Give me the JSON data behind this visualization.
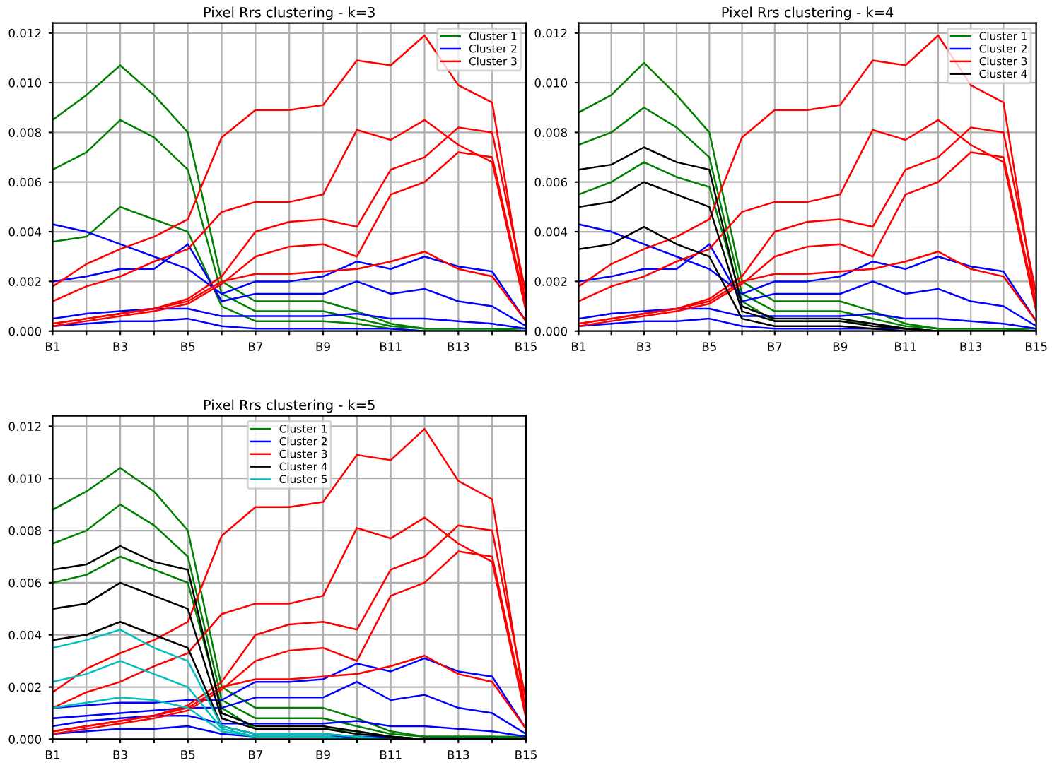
{
  "chart_data": [
    {
      "type": "line",
      "title": "Pixel Rrs clustering - k=3",
      "categories": [
        "B1",
        null,
        "B3",
        null,
        "B5",
        null,
        "B7",
        null,
        "B9",
        null,
        "B11",
        null,
        "B13",
        null,
        "B15"
      ],
      "ylim": [
        0,
        0.0124
      ],
      "yticks": [
        {
          "value": 0,
          "label": "0.000"
        },
        {
          "value": 0.002,
          "label": "0.002"
        },
        {
          "value": 0.004,
          "label": "0.004"
        },
        {
          "value": 0.006,
          "label": "0.006"
        },
        {
          "value": 0.008,
          "label": "0.008"
        },
        {
          "value": 0.01,
          "label": "0.010"
        },
        {
          "value": 0.012,
          "label": "0.012"
        }
      ],
      "grid": true,
      "legend": "top right",
      "series": [
        {
          "name": "Cluster 1",
          "color": "#008000",
          "values": [
            0.0085,
            0.0095,
            0.0107,
            0.0095,
            0.008,
            0.002,
            0.0012,
            0.0012,
            0.0012,
            0.0008,
            0.0003,
            0.0001,
            0.0001,
            0.0001,
            0.0001
          ]
        },
        {
          "color": "#008000",
          "values": [
            0.0065,
            0.0072,
            0.0085,
            0.0078,
            0.0065,
            0.0015,
            0.0008,
            0.0008,
            0.0008,
            0.0005,
            0.0002,
            0.0001,
            0.0001,
            0.0001,
            0
          ]
        },
        {
          "color": "#008000",
          "values": [
            0.0036,
            0.0038,
            0.005,
            0.0045,
            0.004,
            0.001,
            0.0004,
            0.0004,
            0.0004,
            0.0003,
            0.0001,
            0,
            0,
            0,
            0
          ]
        },
        {
          "name": "Cluster 2",
          "color": "#0000ff",
          "values": [
            0.0043,
            0.004,
            0.0035,
            0.003,
            0.0025,
            0.0015,
            0.002,
            0.002,
            0.0022,
            0.0028,
            0.0025,
            0.003,
            0.0026,
            0.0024,
            0.0004
          ]
        },
        {
          "color": "#0000ff",
          "values": [
            0.002,
            0.0022,
            0.0025,
            0.0025,
            0.0035,
            0.0012,
            0.0015,
            0.0015,
            0.0015,
            0.002,
            0.0015,
            0.0017,
            0.0012,
            0.001,
            0.0002
          ]
        },
        {
          "color": "#0000ff",
          "values": [
            0.0005,
            0.0007,
            0.0008,
            0.0009,
            0.0009,
            0.0006,
            0.0006,
            0.0006,
            0.0006,
            0.0007,
            0.0005,
            0.0005,
            0.0004,
            0.0003,
            0.0001
          ]
        },
        {
          "color": "#0000ff",
          "values": [
            0.0002,
            0.0003,
            0.0004,
            0.0004,
            0.0005,
            0.0002,
            0.0001,
            0.0001,
            0.0001,
            0.0001,
            0.0001,
            0,
            0,
            0,
            0
          ]
        },
        {
          "name": "Cluster 3",
          "color": "#ff0000",
          "values": [
            0.0018,
            0.0027,
            0.0033,
            0.0038,
            0.0045,
            0.0078,
            0.0089,
            0.0089,
            0.0091,
            0.0109,
            0.0107,
            0.0119,
            0.0099,
            0.0092,
            0.001
          ]
        },
        {
          "color": "#ff0000",
          "values": [
            0.0012,
            0.0018,
            0.0022,
            0.0028,
            0.0033,
            0.0048,
            0.0052,
            0.0052,
            0.0055,
            0.0081,
            0.0077,
            0.0085,
            0.0075,
            0.0068,
            0.0008
          ]
        },
        {
          "color": "#ff0000",
          "values": [
            0.0003,
            0.0005,
            0.0007,
            0.0009,
            0.0013,
            0.0022,
            0.004,
            0.0044,
            0.0045,
            0.0042,
            0.0065,
            0.007,
            0.0082,
            0.008,
            0.0015
          ]
        },
        {
          "color": "#ff0000",
          "values": [
            0.0002,
            0.0004,
            0.0006,
            0.0008,
            0.0011,
            0.0019,
            0.003,
            0.0034,
            0.0035,
            0.003,
            0.0055,
            0.006,
            0.0072,
            0.007,
            0.001
          ]
        },
        {
          "color": "#ff0000",
          "values": [
            0.0003,
            0.0005,
            0.0007,
            0.0009,
            0.0012,
            0.002,
            0.0023,
            0.0023,
            0.0024,
            0.0025,
            0.0028,
            0.0032,
            0.0025,
            0.0022,
            0.0004
          ]
        }
      ]
    },
    {
      "type": "line",
      "title": "Pixel Rrs clustering - k=4",
      "categories": [
        "B1",
        null,
        "B3",
        null,
        "B5",
        null,
        "B7",
        null,
        "B9",
        null,
        "B11",
        null,
        "B13",
        null,
        "B15"
      ],
      "ylim": [
        0,
        0.0124
      ],
      "yticks": [
        {
          "value": 0,
          "label": "0.000"
        },
        {
          "value": 0.002,
          "label": "0.002"
        },
        {
          "value": 0.004,
          "label": "0.004"
        },
        {
          "value": 0.006,
          "label": "0.006"
        },
        {
          "value": 0.008,
          "label": "0.008"
        },
        {
          "value": 0.01,
          "label": "0.010"
        },
        {
          "value": 0.012,
          "label": "0.012"
        }
      ],
      "grid": true,
      "legend": "top right",
      "series": [
        {
          "name": "Cluster 1",
          "color": "#008000",
          "values": [
            0.0088,
            0.0095,
            0.0108,
            0.0095,
            0.008,
            0.002,
            0.0012,
            0.0012,
            0.0012,
            0.0008,
            0.0003,
            0.0001,
            0.0001,
            0.0001,
            0.0001
          ]
        },
        {
          "color": "#008000",
          "values": [
            0.0075,
            0.008,
            0.009,
            0.0082,
            0.007,
            0.0015,
            0.0008,
            0.0008,
            0.0008,
            0.0005,
            0.0002,
            0.0001,
            0.0001,
            0.0001,
            0
          ]
        },
        {
          "color": "#008000",
          "values": [
            0.0055,
            0.006,
            0.0068,
            0.0062,
            0.0058,
            0.0012,
            0.0004,
            0.0004,
            0.0004,
            0.0003,
            0.0001,
            0,
            0,
            0,
            0
          ]
        },
        {
          "name": "Cluster 2",
          "color": "#0000ff",
          "values": [
            0.0043,
            0.004,
            0.0035,
            0.003,
            0.0025,
            0.0015,
            0.002,
            0.002,
            0.0022,
            0.0028,
            0.0025,
            0.003,
            0.0026,
            0.0024,
            0.0004
          ]
        },
        {
          "color": "#0000ff",
          "values": [
            0.002,
            0.0022,
            0.0025,
            0.0025,
            0.0035,
            0.0012,
            0.0015,
            0.0015,
            0.0015,
            0.002,
            0.0015,
            0.0017,
            0.0012,
            0.001,
            0.0002
          ]
        },
        {
          "color": "#0000ff",
          "values": [
            0.0005,
            0.0007,
            0.0008,
            0.0009,
            0.0009,
            0.0006,
            0.0006,
            0.0006,
            0.0006,
            0.0007,
            0.0005,
            0.0005,
            0.0004,
            0.0003,
            0.0001
          ]
        },
        {
          "color": "#0000ff",
          "values": [
            0.0002,
            0.0003,
            0.0004,
            0.0004,
            0.0005,
            0.0002,
            0.0001,
            0.0001,
            0.0001,
            0.0001,
            0.0001,
            0,
            0,
            0,
            0
          ]
        },
        {
          "name": "Cluster 3",
          "color": "#ff0000",
          "values": [
            0.0018,
            0.0027,
            0.0033,
            0.0038,
            0.0045,
            0.0078,
            0.0089,
            0.0089,
            0.0091,
            0.0109,
            0.0107,
            0.0119,
            0.0099,
            0.0092,
            0.001
          ]
        },
        {
          "color": "#ff0000",
          "values": [
            0.0012,
            0.0018,
            0.0022,
            0.0028,
            0.0033,
            0.0048,
            0.0052,
            0.0052,
            0.0055,
            0.0081,
            0.0077,
            0.0085,
            0.0075,
            0.0068,
            0.0008
          ]
        },
        {
          "color": "#ff0000",
          "values": [
            0.0003,
            0.0005,
            0.0007,
            0.0009,
            0.0013,
            0.0022,
            0.004,
            0.0044,
            0.0045,
            0.0042,
            0.0065,
            0.007,
            0.0082,
            0.008,
            0.0015
          ]
        },
        {
          "color": "#ff0000",
          "values": [
            0.0002,
            0.0004,
            0.0006,
            0.0008,
            0.0011,
            0.0019,
            0.003,
            0.0034,
            0.0035,
            0.003,
            0.0055,
            0.006,
            0.0072,
            0.007,
            0.001
          ]
        },
        {
          "color": "#ff0000",
          "values": [
            0.0003,
            0.0005,
            0.0007,
            0.0009,
            0.0012,
            0.002,
            0.0023,
            0.0023,
            0.0024,
            0.0025,
            0.0028,
            0.0032,
            0.0025,
            0.0022,
            0.0004
          ]
        },
        {
          "name": "Cluster 4",
          "color": "#000000",
          "values": [
            0.0065,
            0.0067,
            0.0074,
            0.0068,
            0.0065,
            0.001,
            0.0005,
            0.0005,
            0.0005,
            0.0003,
            0.0001,
            0,
            0,
            0,
            0
          ]
        },
        {
          "color": "#000000",
          "values": [
            0.005,
            0.0052,
            0.006,
            0.0055,
            0.005,
            0.0008,
            0.0004,
            0.0004,
            0.0004,
            0.0002,
            0.0001,
            0,
            0,
            0,
            0
          ]
        },
        {
          "color": "#000000",
          "values": [
            0.0033,
            0.0035,
            0.0042,
            0.0035,
            0.003,
            0.0005,
            0.0002,
            0.0002,
            0.0002,
            0.0001,
            0,
            0,
            0,
            0,
            0
          ]
        }
      ]
    },
    {
      "type": "line",
      "title": "Pixel Rrs clustering - k=5",
      "categories": [
        "B1",
        null,
        "B3",
        null,
        "B5",
        null,
        "B7",
        null,
        "B9",
        null,
        "B11",
        null,
        "B13",
        null,
        "B15"
      ],
      "ylim": [
        0,
        0.0124
      ],
      "yticks": [
        {
          "value": 0,
          "label": "0.000"
        },
        {
          "value": 0.002,
          "label": "0.002"
        },
        {
          "value": 0.004,
          "label": "0.004"
        },
        {
          "value": 0.006,
          "label": "0.006"
        },
        {
          "value": 0.008,
          "label": "0.008"
        },
        {
          "value": 0.01,
          "label": "0.010"
        },
        {
          "value": 0.012,
          "label": "0.012"
        }
      ],
      "grid": true,
      "legend": "top",
      "series": [
        {
          "name": "Cluster 1",
          "color": "#008000",
          "values": [
            0.0088,
            0.0095,
            0.0104,
            0.0095,
            0.008,
            0.002,
            0.0012,
            0.0012,
            0.0012,
            0.0008,
            0.0003,
            0.0001,
            0.0001,
            0.0001,
            0.0001
          ]
        },
        {
          "color": "#008000",
          "values": [
            0.0075,
            0.008,
            0.009,
            0.0082,
            0.007,
            0.0015,
            0.0008,
            0.0008,
            0.0008,
            0.0005,
            0.0002,
            0.0001,
            0.0001,
            0.0001,
            0
          ]
        },
        {
          "color": "#008000",
          "values": [
            0.006,
            0.0063,
            0.007,
            0.0065,
            0.006,
            0.0012,
            0.0004,
            0.0004,
            0.0004,
            0.0003,
            0.0001,
            0,
            0,
            0,
            0
          ]
        },
        {
          "name": "Cluster 2",
          "color": "#0000ff",
          "values": [
            0.0012,
            0.0013,
            0.0014,
            0.0014,
            0.0015,
            0.0015,
            0.0022,
            0.0022,
            0.0023,
            0.0029,
            0.0026,
            0.0031,
            0.0026,
            0.0024,
            0.0004
          ]
        },
        {
          "color": "#0000ff",
          "values": [
            0.0008,
            0.0009,
            0.001,
            0.0011,
            0.0012,
            0.0012,
            0.0016,
            0.0016,
            0.0016,
            0.0022,
            0.0015,
            0.0017,
            0.0012,
            0.001,
            0.0002
          ]
        },
        {
          "color": "#0000ff",
          "values": [
            0.0005,
            0.0007,
            0.0008,
            0.0009,
            0.0009,
            0.0006,
            0.0006,
            0.0006,
            0.0006,
            0.0007,
            0.0005,
            0.0005,
            0.0004,
            0.0003,
            0.0001
          ]
        },
        {
          "color": "#0000ff",
          "values": [
            0.0002,
            0.0003,
            0.0004,
            0.0004,
            0.0005,
            0.0002,
            0.0001,
            0.0001,
            0.0001,
            0.0001,
            0.0001,
            0,
            0,
            0,
            0
          ]
        },
        {
          "name": "Cluster 3",
          "color": "#ff0000",
          "values": [
            0.0018,
            0.0027,
            0.0033,
            0.0038,
            0.0045,
            0.0078,
            0.0089,
            0.0089,
            0.0091,
            0.0109,
            0.0107,
            0.0119,
            0.0099,
            0.0092,
            0.001
          ]
        },
        {
          "color": "#ff0000",
          "values": [
            0.0012,
            0.0018,
            0.0022,
            0.0028,
            0.0033,
            0.0048,
            0.0052,
            0.0052,
            0.0055,
            0.0081,
            0.0077,
            0.0085,
            0.0075,
            0.0068,
            0.0008
          ]
        },
        {
          "color": "#ff0000",
          "values": [
            0.0003,
            0.0005,
            0.0007,
            0.0009,
            0.0013,
            0.0022,
            0.004,
            0.0044,
            0.0045,
            0.0042,
            0.0065,
            0.007,
            0.0082,
            0.008,
            0.0015
          ]
        },
        {
          "color": "#ff0000",
          "values": [
            0.0002,
            0.0004,
            0.0006,
            0.0008,
            0.0011,
            0.0019,
            0.003,
            0.0034,
            0.0035,
            0.003,
            0.0055,
            0.006,
            0.0072,
            0.007,
            0.001
          ]
        },
        {
          "color": "#ff0000",
          "values": [
            0.0003,
            0.0005,
            0.0007,
            0.0009,
            0.0012,
            0.002,
            0.0023,
            0.0023,
            0.0024,
            0.0025,
            0.0028,
            0.0032,
            0.0025,
            0.0022,
            0.0004
          ]
        },
        {
          "name": "Cluster 4",
          "color": "#000000",
          "values": [
            0.0065,
            0.0067,
            0.0074,
            0.0068,
            0.0065,
            0.001,
            0.0005,
            0.0005,
            0.0005,
            0.0003,
            0.0001,
            0,
            0,
            0,
            0
          ]
        },
        {
          "color": "#000000",
          "values": [
            0.005,
            0.0052,
            0.006,
            0.0055,
            0.005,
            0.0008,
            0.0004,
            0.0004,
            0.0004,
            0.0002,
            0.0001,
            0,
            0,
            0,
            0
          ]
        },
        {
          "color": "#000000",
          "values": [
            0.0038,
            0.004,
            0.0045,
            0.004,
            0.0035,
            0.0005,
            0.0002,
            0.0002,
            0.0002,
            0.0001,
            0,
            0,
            0,
            0,
            0
          ]
        },
        {
          "name": "Cluster 5",
          "color": "#00bfbf",
          "values": [
            0.0035,
            0.0038,
            0.0042,
            0.0035,
            0.003,
            0.0005,
            0.0002,
            0.0002,
            0.0002,
            0.0001,
            0,
            null,
            null,
            null,
            null
          ]
        },
        {
          "color": "#00bfbf",
          "values": [
            0.0022,
            0.0025,
            0.003,
            0.0025,
            0.002,
            0.0004,
            0.0001,
            0.0001,
            0.0001,
            0,
            0,
            null,
            null,
            null,
            null
          ]
        },
        {
          "color": "#00bfbf",
          "values": [
            0.0012,
            0.0014,
            0.0016,
            0.0015,
            0.0012,
            0.0003,
            0.0001,
            0.0001,
            0.0001,
            0,
            0,
            null,
            null,
            null,
            null
          ]
        }
      ]
    }
  ]
}
